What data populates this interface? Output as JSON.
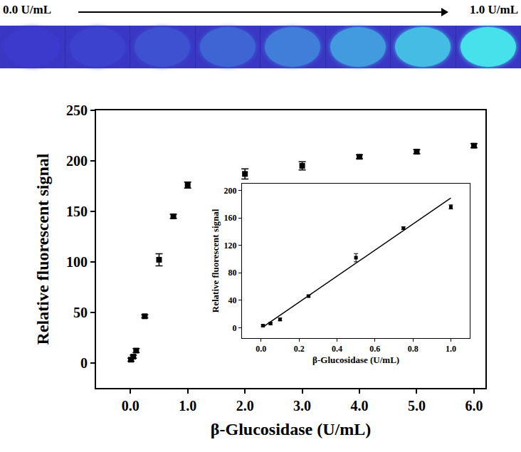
{
  "image_strip": {
    "start_label": "0.0 U/mL",
    "end_label": "1.0 U/mL"
  },
  "chart_data": [
    {
      "type": "scatter",
      "x_label": "β-Glucosidase (U/mL)",
      "y_label": "Relative fluorescent signal",
      "xlim": [
        -0.6,
        6.2
      ],
      "xticks": [
        {
          "value": 0,
          "label": "0.0"
        },
        {
          "value": 1,
          "label": "1.0"
        },
        {
          "value": 2,
          "label": "2.0"
        },
        {
          "value": 3,
          "label": "3.0"
        },
        {
          "value": 4,
          "label": "4.0"
        },
        {
          "value": 5,
          "label": "5.0"
        },
        {
          "value": 6,
          "label": "6.0"
        }
      ],
      "ylim": [
        -25,
        250
      ],
      "yticks": [
        0,
        50,
        100,
        150,
        200,
        250
      ],
      "grid": false,
      "series": [
        {
          "type": "scatter",
          "marker": "square",
          "color": "#000000",
          "x": [
            0.01,
            0.05,
            0.1,
            0.25,
            0.5,
            0.75,
            1.0,
            2.0,
            3.0,
            4.0,
            5.0,
            6.0
          ],
          "values": [
            3,
            6,
            12,
            46,
            102,
            145,
            176,
            187,
            195,
            204,
            209,
            215
          ],
          "error": [
            1.5,
            1.5,
            2,
            1.5,
            6,
            2,
            3,
            5,
            4,
            2,
            2,
            2
          ]
        }
      ]
    },
    {
      "type": "scatter",
      "x_label": "β-Glucosidase (U/mL)",
      "y_label": "Relative fluorescent signal",
      "xlim": [
        -0.1,
        1.1
      ],
      "xticks": [
        {
          "value": 0,
          "label": "0.0"
        },
        {
          "value": 0.2,
          "label": "0.2"
        },
        {
          "value": 0.4,
          "label": "0.4"
        },
        {
          "value": 0.6,
          "label": "0.6"
        },
        {
          "value": 0.8,
          "label": "0.8"
        },
        {
          "value": 1.0,
          "label": "1.0"
        }
      ],
      "ylim": [
        -15,
        210
      ],
      "yticks": [
        0,
        40,
        80,
        120,
        160,
        200
      ],
      "grid": false,
      "series": [
        {
          "type": "scatter",
          "marker": "square",
          "color": "#000000",
          "x": [
            0.01,
            0.05,
            0.1,
            0.25,
            0.5,
            0.75,
            1.0
          ],
          "values": [
            3,
            6,
            12,
            46,
            102,
            145,
            176
          ],
          "error": [
            1.5,
            1.5,
            2,
            1.5,
            6,
            2,
            3
          ]
        },
        {
          "type": "line",
          "line_style": "solid",
          "color": "#000000",
          "x": [
            0.01,
            1.0
          ],
          "values": [
            1,
            189
          ]
        }
      ]
    }
  ]
}
